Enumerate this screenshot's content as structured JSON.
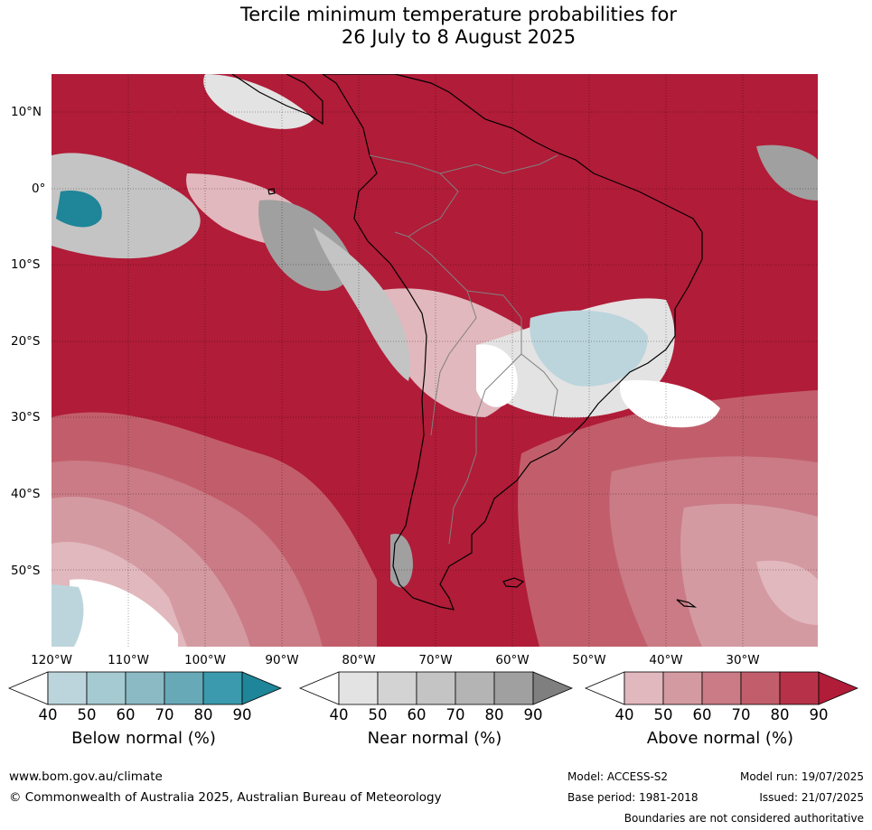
{
  "title_line1": "Tercile minimum temperature probabilities for",
  "title_line2": "26 July to 8 August 2025",
  "lat_labels": [
    "10°N",
    "0°",
    "10°S",
    "20°S",
    "30°S",
    "40°S",
    "50°S"
  ],
  "lon_labels": [
    "120°W",
    "110°W",
    "100°W",
    "90°W",
    "80°W",
    "70°W",
    "60°W",
    "50°W",
    "40°W",
    "30°W"
  ],
  "colorbars": [
    {
      "title": "Below normal (%)",
      "ticks": [
        "40",
        "50",
        "60",
        "70",
        "80",
        "90"
      ],
      "colors": [
        "#ffffff",
        "#bcd5dc",
        "#a6cad2",
        "#8bbac4",
        "#68a9b8",
        "#3b9aad",
        "#1f8598"
      ]
    },
    {
      "title": "Near normal (%)",
      "ticks": [
        "40",
        "50",
        "60",
        "70",
        "80",
        "90"
      ],
      "colors": [
        "#ffffff",
        "#e3e3e3",
        "#d3d3d3",
        "#c4c4c4",
        "#b4b4b4",
        "#a0a0a0",
        "#7f7f7f"
      ]
    },
    {
      "title": "Above normal (%)",
      "ticks": [
        "40",
        "50",
        "60",
        "70",
        "80",
        "90"
      ],
      "colors": [
        "#ffffff",
        "#e1b8bd",
        "#d49aa2",
        "#ca7b85",
        "#c25e6b",
        "#b73249",
        "#b11c38"
      ]
    }
  ],
  "map_colors": {
    "ocean_above": "#b11c38",
    "above_80": "#b73249",
    "above_70": "#c25e6b",
    "above_60": "#ca7b85",
    "above_50": "#d49aa2",
    "above_40": "#e1b8bd",
    "near_60": "#c4c4c4",
    "near_80": "#a0a0a0",
    "near_90": "#7f7f7f",
    "below_50": "#bcd5dc",
    "below_60": "#a6cad2",
    "below_80": "#3b9aad",
    "below_90": "#1f8598"
  },
  "footer": {
    "website": "www.bom.gov.au/climate",
    "copyright": "© Commonwealth of Australia 2025, Australian Bureau of Meteorology",
    "model": "Model: ACCESS-S2",
    "model_run": "Model run: 19/07/2025",
    "base_period": "Base period: 1981-2018",
    "issued": "Issued: 21/07/2025",
    "disclaimer": "Boundaries are not considered authoritative"
  }
}
